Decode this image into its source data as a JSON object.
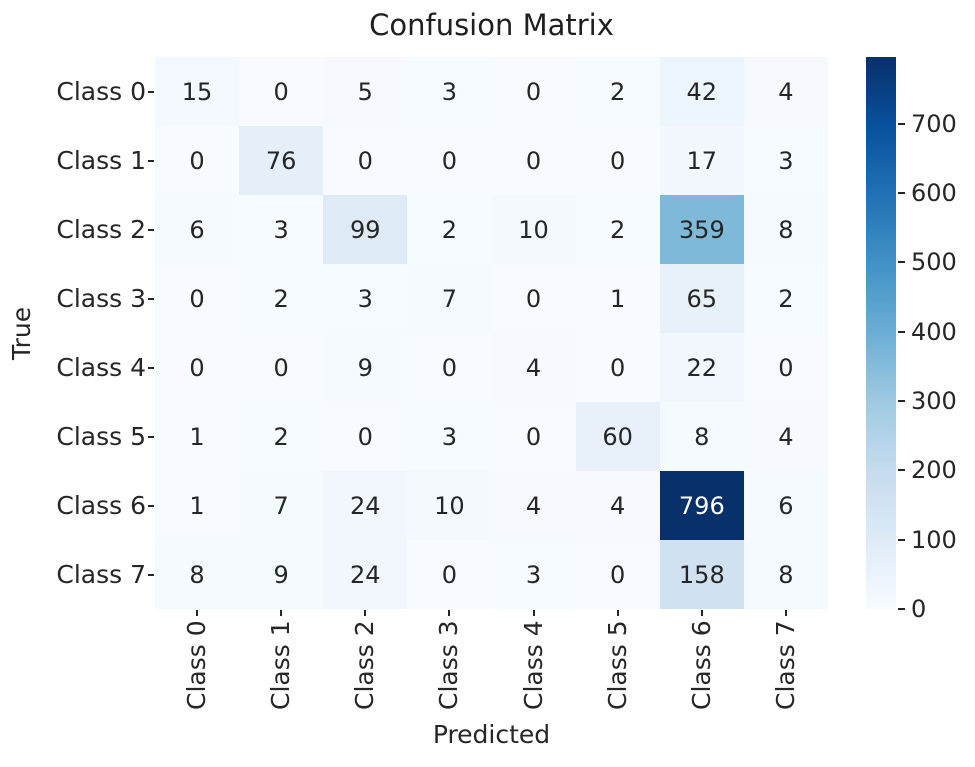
{
  "chart_data": {
    "type": "heatmap",
    "title": "Confusion Matrix",
    "xlabel": "Predicted",
    "ylabel": "True",
    "x_categories": [
      "Class 0",
      "Class 1",
      "Class 2",
      "Class 3",
      "Class 4",
      "Class 5",
      "Class 6",
      "Class 7"
    ],
    "y_categories": [
      "Class 0",
      "Class 1",
      "Class 2",
      "Class 3",
      "Class 4",
      "Class 5",
      "Class 6",
      "Class 7"
    ],
    "matrix": [
      [
        15,
        0,
        5,
        3,
        0,
        2,
        42,
        4
      ],
      [
        0,
        76,
        0,
        0,
        0,
        0,
        17,
        3
      ],
      [
        6,
        3,
        99,
        2,
        10,
        2,
        359,
        8
      ],
      [
        0,
        2,
        3,
        7,
        0,
        1,
        65,
        2
      ],
      [
        0,
        0,
        9,
        0,
        4,
        0,
        22,
        0
      ],
      [
        1,
        2,
        0,
        3,
        0,
        60,
        8,
        4
      ],
      [
        1,
        7,
        24,
        10,
        4,
        4,
        796,
        6
      ],
      [
        8,
        9,
        24,
        0,
        3,
        0,
        158,
        8
      ]
    ],
    "vmin": 0,
    "vmax": 796,
    "colormap": "Blues",
    "colorbar_ticks": [
      0,
      100,
      200,
      300,
      400,
      500,
      600,
      700
    ],
    "legend_position": "right-colorbar",
    "grid": false,
    "colors": {
      "background": "#ffffff",
      "cmap_low": "#f7fbff",
      "cmap_high": "#08306b",
      "annotation_dark": "#262626",
      "annotation_light": "#ffffff"
    }
  }
}
